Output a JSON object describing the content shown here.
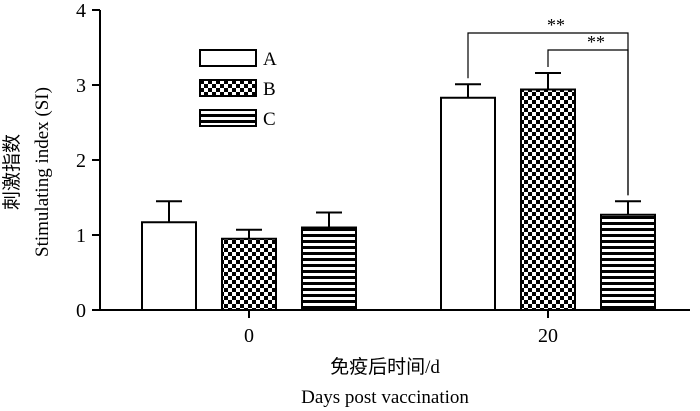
{
  "chart_data": {
    "type": "bar",
    "title": "",
    "ylabel": "Stimulating index (SI)",
    "ylabel_cn": "刺激指数",
    "xlabel": "Days post vaccination",
    "xlabel_cn": "免疫后时间/d",
    "categories": [
      "0",
      "20"
    ],
    "ylim": [
      0,
      4
    ],
    "yticks": [
      "0",
      "1",
      "2",
      "3",
      "4"
    ],
    "series": [
      {
        "name": "A",
        "values": [
          1.17,
          2.83
        ],
        "errors": [
          0.28,
          0.18
        ],
        "pattern": "open"
      },
      {
        "name": "B",
        "values": [
          0.95,
          2.94
        ],
        "errors": [
          0.12,
          0.22
        ],
        "pattern": "checker"
      },
      {
        "name": "C",
        "values": [
          1.1,
          1.27
        ],
        "errors": [
          0.2,
          0.18
        ],
        "pattern": "stripes"
      }
    ],
    "legend": "top-left",
    "grid": false,
    "annotations": [
      {
        "label": "**",
        "from_series": "A",
        "to_series": "C",
        "category": "20"
      },
      {
        "label": "**",
        "from_series": "B",
        "to_series": "C",
        "category": "20"
      }
    ]
  }
}
